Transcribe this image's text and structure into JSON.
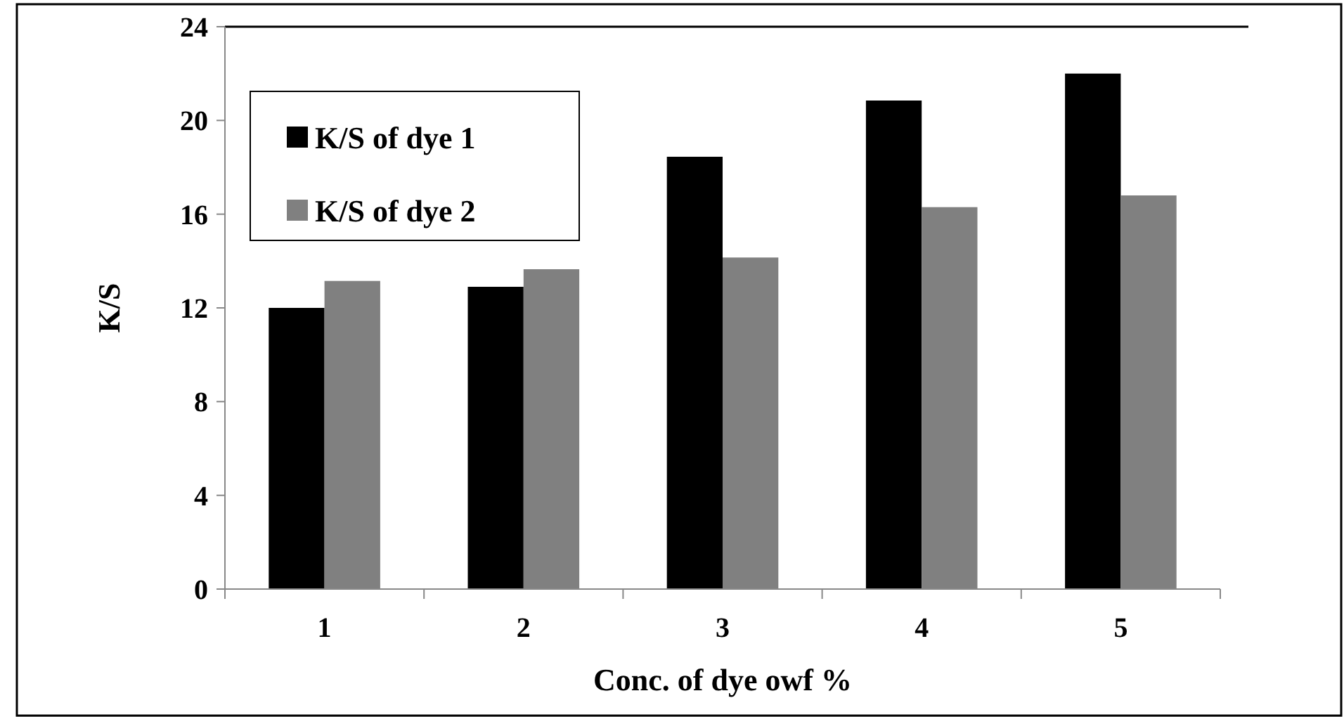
{
  "chart_data": {
    "type": "bar",
    "xlabel": "Conc. of dye owf %",
    "ylabel": "K/S",
    "categories": [
      "1",
      "2",
      "3",
      "4",
      "5"
    ],
    "series": [
      {
        "name": "K/S of dye 1",
        "color": "#000000",
        "values": [
          12.0,
          12.9,
          18.45,
          20.85,
          22.0
        ]
      },
      {
        "name": "K/S of dye 2",
        "color": "#808080",
        "values": [
          13.15,
          13.65,
          14.15,
          16.3,
          16.8
        ]
      }
    ],
    "ylim": [
      0,
      24
    ],
    "yticks": [
      0,
      4,
      8,
      12,
      16,
      20,
      24
    ],
    "grid": false,
    "legend": "top left"
  }
}
